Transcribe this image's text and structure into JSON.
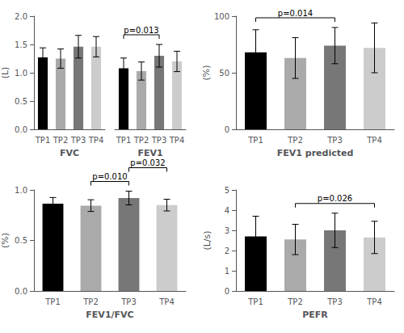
{
  "chart_data": [
    {
      "type": "bar",
      "ylabel": "(L)",
      "categories": [
        "TP1",
        "TP2",
        "TP3",
        "TP4"
      ],
      "colors": [
        "#000000",
        "#aaaaaa",
        "#777777",
        "#cccccc"
      ],
      "groups": [
        {
          "label": "FVC",
          "values": [
            1.27,
            1.25,
            1.46,
            1.46
          ],
          "errors": [
            0.17,
            0.17,
            0.2,
            0.18
          ]
        },
        {
          "label": "FEV1",
          "values": [
            1.08,
            1.03,
            1.3,
            1.2
          ],
          "errors": [
            0.18,
            0.16,
            0.2,
            0.18
          ],
          "annotations": [
            {
              "text": "p=0.013",
              "from": "TP1",
              "to": "TP3"
            }
          ]
        }
      ],
      "ylim": [
        0.0,
        2.0
      ],
      "yticks": [
        {
          "value": 0,
          "label": "0.0"
        },
        0.5,
        {
          "value": 1,
          "label": "1.0"
        },
        1.5,
        {
          "value": 2,
          "label": "2.0"
        }
      ],
      "grid": false
    },
    {
      "type": "bar",
      "xlabel": "FEV1 predicted",
      "ylabel": "(%)",
      "categories": [
        "TP1",
        "TP2",
        "TP3",
        "TP4"
      ],
      "colors": [
        "#000000",
        "#aaaaaa",
        "#777777",
        "#cccccc"
      ],
      "values": [
        68,
        63,
        74,
        72
      ],
      "errors": [
        20,
        18,
        16,
        22
      ],
      "annotations": [
        {
          "text": "p=0.014",
          "from": "TP1",
          "to": "TP3"
        }
      ],
      "ylim": [
        0,
        100
      ],
      "yticks": [
        0,
        50,
        100
      ],
      "grid": false
    },
    {
      "type": "bar",
      "xlabel": "FEV1/FVC",
      "ylabel": "(%)",
      "categories": [
        "TP1",
        "TP2",
        "TP3",
        "TP4"
      ],
      "colors": [
        "#000000",
        "#aaaaaa",
        "#777777",
        "#cccccc"
      ],
      "values": [
        0.865,
        0.845,
        0.92,
        0.85
      ],
      "errors": [
        0.06,
        0.058,
        0.068,
        0.058
      ],
      "annotations": [
        {
          "text": "p=0.010",
          "from": "TP2",
          "to": "TP3"
        },
        {
          "text": "p=0.032",
          "from": "TP3",
          "to": "TP4"
        }
      ],
      "ylim": [
        0.0,
        1.0
      ],
      "yticks": [
        {
          "value": 0,
          "label": "0.0"
        },
        0.5,
        {
          "value": 1,
          "label": "1.0"
        }
      ],
      "grid": false
    },
    {
      "type": "bar",
      "xlabel": "PEFR",
      "ylabel": "(L/s)",
      "categories": [
        "TP1",
        "TP2",
        "TP3",
        "TP4"
      ],
      "colors": [
        "#000000",
        "#aaaaaa",
        "#777777",
        "#cccccc"
      ],
      "values": [
        2.7,
        2.55,
        3.0,
        2.65
      ],
      "errors": [
        1.0,
        0.75,
        0.85,
        0.8
      ],
      "annotations": [
        {
          "text": "p=0.026",
          "from": "TP2",
          "to": "TP4"
        }
      ],
      "ylim": [
        0,
        5
      ],
      "yticks": [
        0,
        1,
        2,
        3,
        4,
        5
      ],
      "grid": false
    }
  ]
}
